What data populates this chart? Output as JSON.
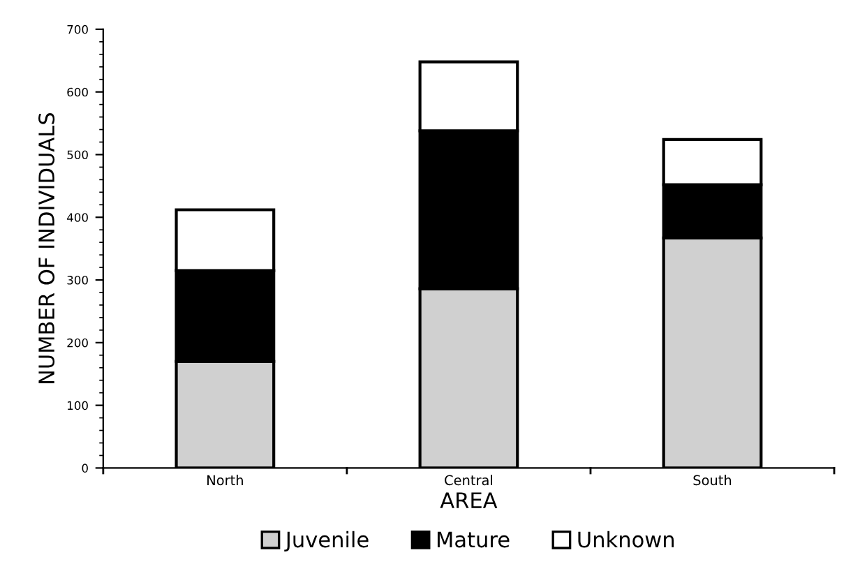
{
  "chart_data": {
    "type": "bar",
    "stacked": true,
    "xlabel": "AREA",
    "ylabel": "NUMBER OF INDIVIDUALS",
    "categories": [
      "North",
      "Central",
      "South"
    ],
    "series": [
      {
        "name": "Juvenile",
        "color": "#d0d0d0",
        "values": [
          170,
          286,
          367
        ]
      },
      {
        "name": "Mature",
        "color": "#000000",
        "values": [
          145,
          252,
          85
        ]
      },
      {
        "name": "Unknown",
        "color": "#ffffff",
        "values": [
          97,
          110,
          72
        ]
      }
    ],
    "ylim": [
      0,
      700
    ],
    "yticks": [
      0,
      100,
      200,
      300,
      400,
      500,
      600,
      700
    ],
    "grid": false,
    "legend": "bottom"
  }
}
